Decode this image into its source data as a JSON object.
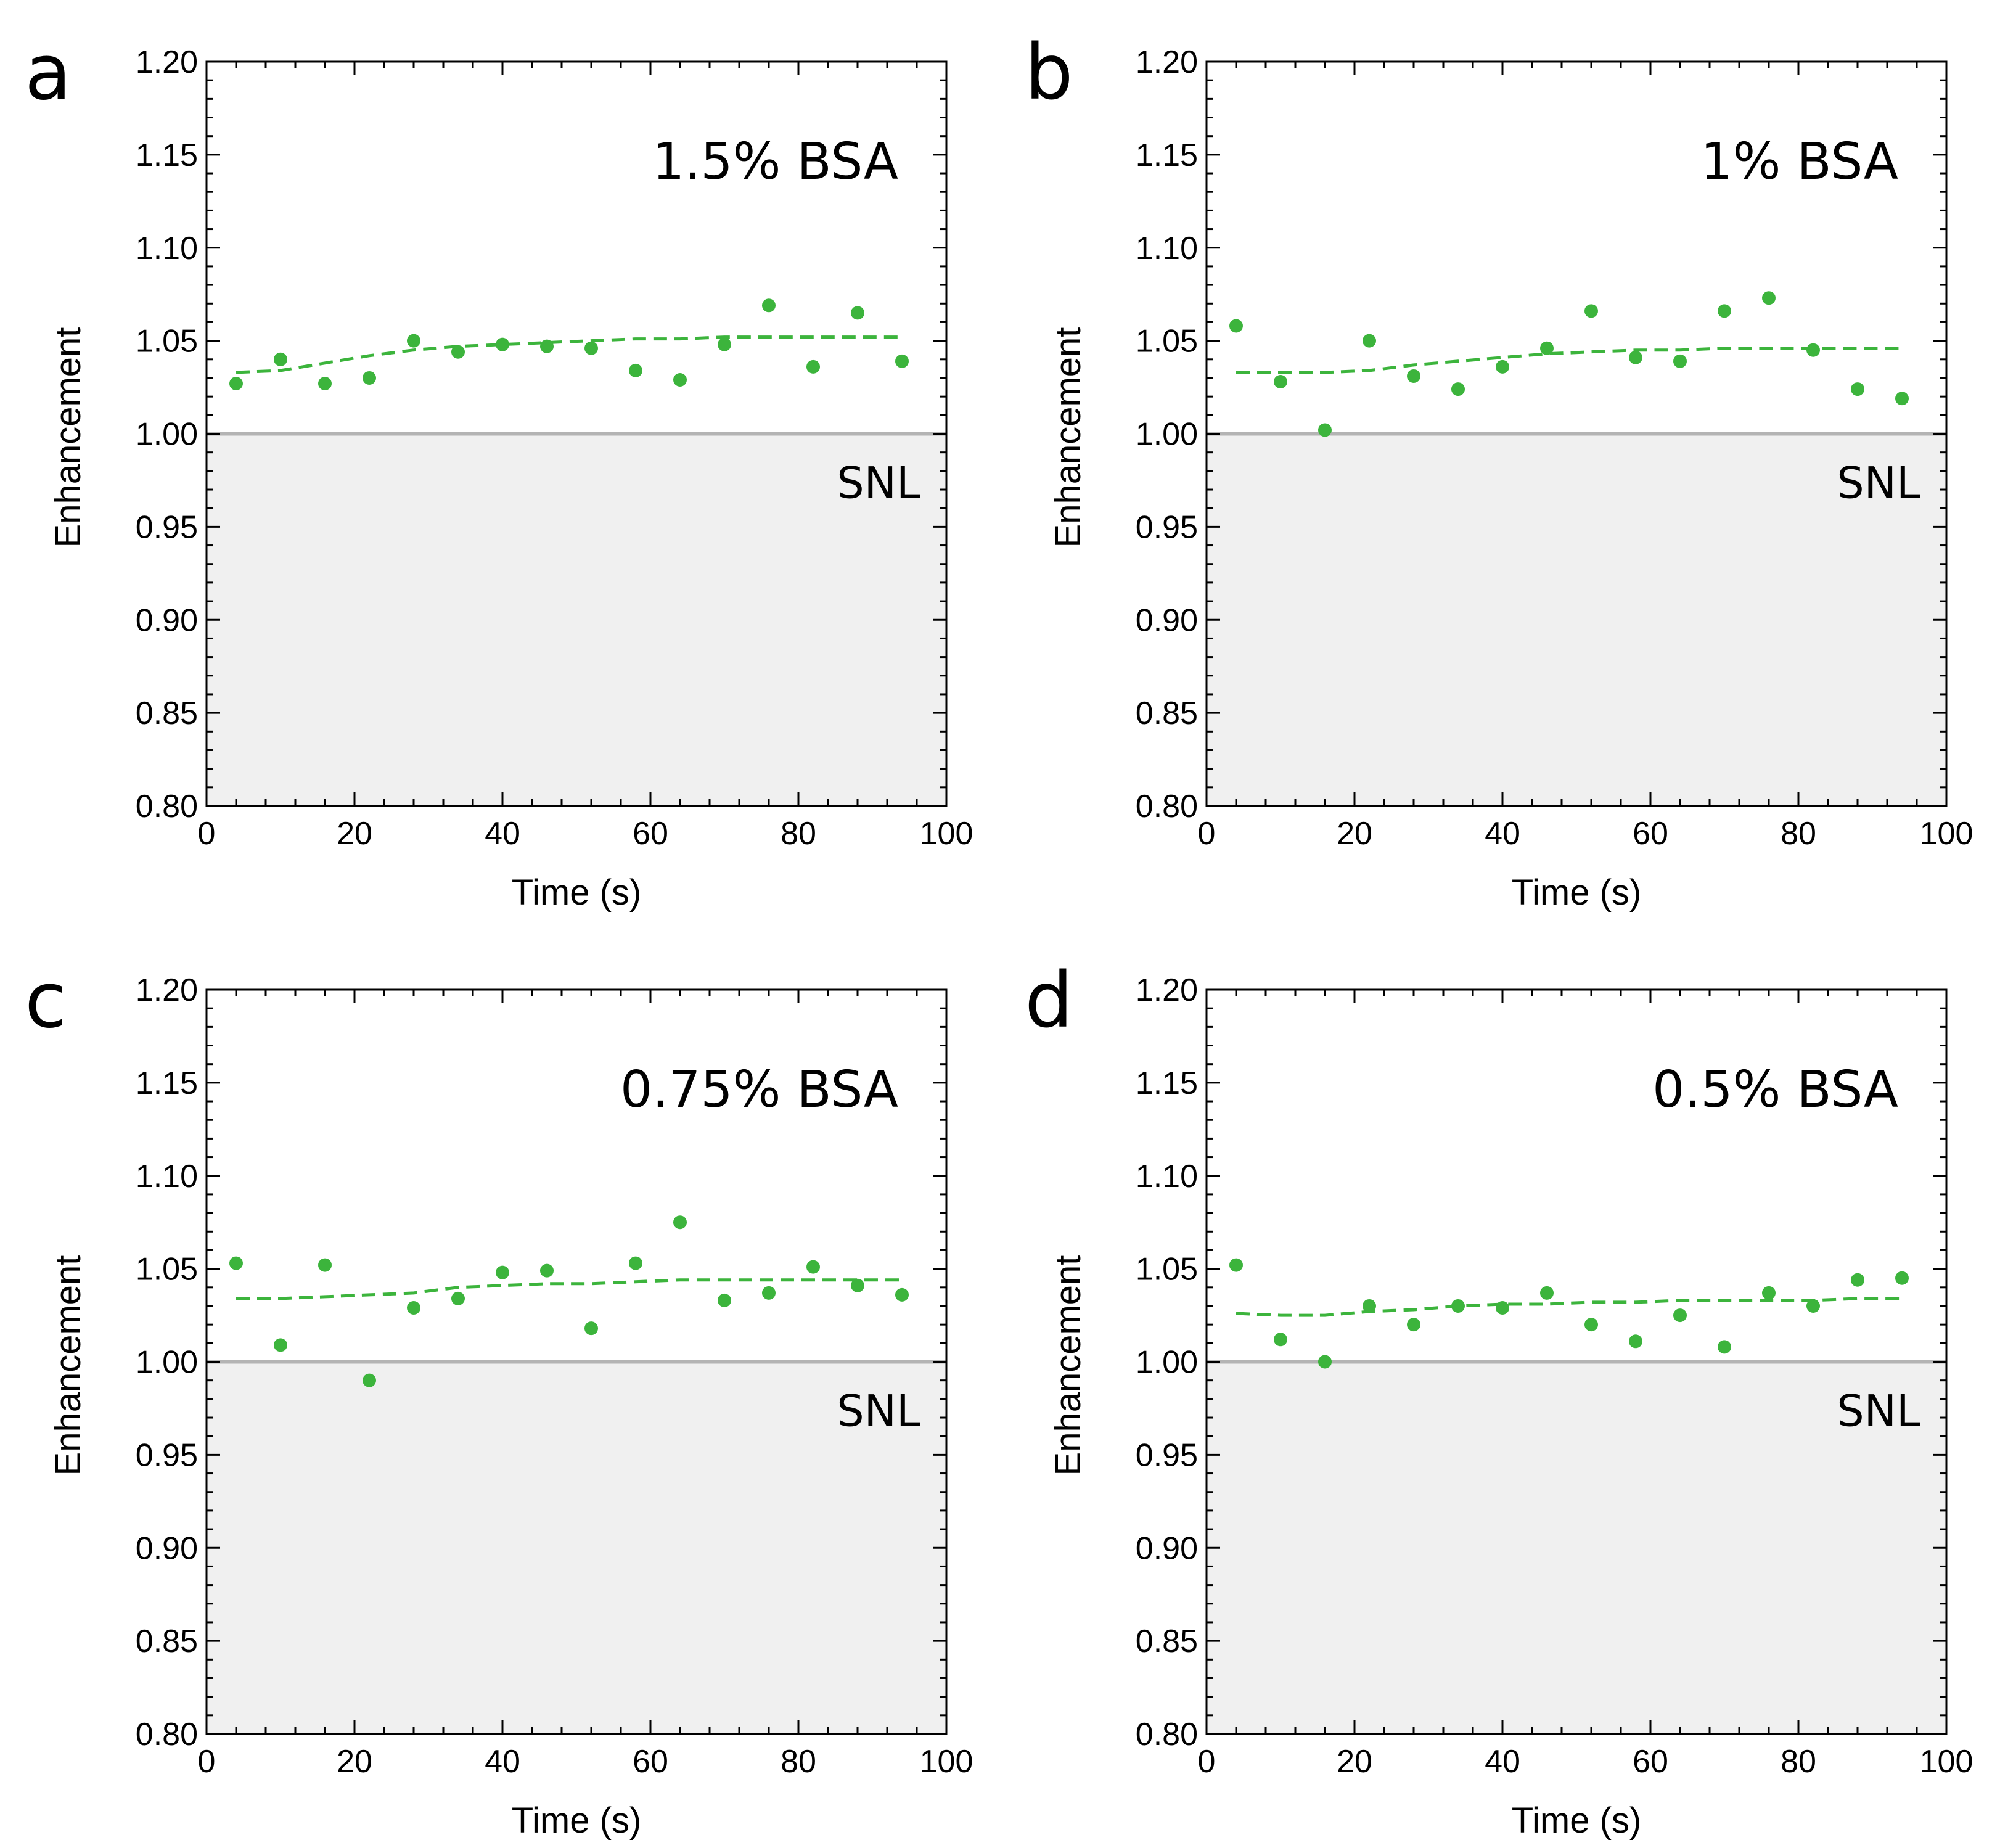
{
  "figure": {
    "colors": {
      "series": "#3cb43c",
      "snl_line": "#b4b4b4",
      "snl_fill": "#f0f0f0",
      "axes": "#000000"
    }
  },
  "chart_data": [
    {
      "type": "scatter",
      "panel_label": "a",
      "annotation": "1.5% BSA",
      "reference_label": "SNL",
      "reference_value": 1.0,
      "xlabel": "Time (s)",
      "ylabel": "Enhancement",
      "xlim": [
        0,
        100
      ],
      "ylim": [
        0.8,
        1.2
      ],
      "x_ticks": [
        "0",
        "20",
        "40",
        "60",
        "80",
        "100"
      ],
      "y_ticks": [
        "0.80",
        "0.85",
        "0.90",
        "0.95",
        "1.00",
        "1.05",
        "1.10",
        "1.15",
        "1.20"
      ],
      "x": [
        4,
        10,
        16,
        22,
        28,
        34,
        40,
        46,
        52,
        58,
        64,
        70,
        76,
        82,
        88,
        94
      ],
      "values": [
        1.027,
        1.04,
        1.027,
        1.03,
        1.05,
        1.044,
        1.048,
        1.047,
        1.046,
        1.034,
        1.029,
        1.048,
        1.069,
        1.036,
        1.065,
        1.039
      ],
      "fit": {
        "x": [
          4,
          10,
          16,
          22,
          28,
          34,
          40,
          46,
          52,
          58,
          64,
          70,
          76,
          82,
          88,
          94
        ],
        "y": [
          1.033,
          1.034,
          1.038,
          1.042,
          1.045,
          1.047,
          1.048,
          1.049,
          1.05,
          1.051,
          1.051,
          1.052,
          1.052,
          1.052,
          1.052,
          1.052
        ]
      }
    },
    {
      "type": "scatter",
      "panel_label": "b",
      "annotation": "1% BSA",
      "reference_label": "SNL",
      "reference_value": 1.0,
      "xlabel": "Time (s)",
      "ylabel": "Enhancement",
      "xlim": [
        0,
        100
      ],
      "ylim": [
        0.8,
        1.2
      ],
      "x_ticks": [
        "0",
        "20",
        "40",
        "60",
        "80",
        "100"
      ],
      "y_ticks": [
        "0.80",
        "0.85",
        "0.90",
        "0.95",
        "1.00",
        "1.05",
        "1.10",
        "1.15",
        "1.20"
      ],
      "x": [
        4,
        10,
        16,
        22,
        28,
        34,
        40,
        46,
        52,
        58,
        64,
        70,
        76,
        82,
        88,
        94
      ],
      "values": [
        1.058,
        1.028,
        1.002,
        1.05,
        1.031,
        1.024,
        1.036,
        1.046,
        1.066,
        1.041,
        1.039,
        1.066,
        1.073,
        1.045,
        1.024,
        1.019
      ],
      "fit": {
        "x": [
          4,
          10,
          16,
          22,
          28,
          34,
          40,
          46,
          52,
          58,
          64,
          70,
          76,
          82,
          88,
          94
        ],
        "y": [
          1.033,
          1.033,
          1.033,
          1.034,
          1.037,
          1.039,
          1.041,
          1.043,
          1.044,
          1.045,
          1.045,
          1.046,
          1.046,
          1.046,
          1.046,
          1.046
        ]
      }
    },
    {
      "type": "scatter",
      "panel_label": "c",
      "annotation": "0.75% BSA",
      "reference_label": "SNL",
      "reference_value": 1.0,
      "xlabel": "Time (s)",
      "ylabel": "Enhancement",
      "xlim": [
        0,
        100
      ],
      "ylim": [
        0.8,
        1.2
      ],
      "x_ticks": [
        "0",
        "20",
        "40",
        "60",
        "80",
        "100"
      ],
      "y_ticks": [
        "0.80",
        "0.85",
        "0.90",
        "0.95",
        "1.00",
        "1.05",
        "1.10",
        "1.15",
        "1.20"
      ],
      "x": [
        4,
        10,
        16,
        22,
        28,
        34,
        40,
        46,
        52,
        58,
        64,
        70,
        76,
        82,
        88,
        94
      ],
      "values": [
        1.053,
        1.009,
        1.052,
        0.99,
        1.029,
        1.034,
        1.048,
        1.049,
        1.018,
        1.053,
        1.075,
        1.033,
        1.037,
        1.051,
        1.041,
        1.036
      ],
      "fit": {
        "x": [
          4,
          10,
          16,
          22,
          28,
          34,
          40,
          46,
          52,
          58,
          64,
          70,
          76,
          82,
          88,
          94
        ],
        "y": [
          1.034,
          1.034,
          1.035,
          1.036,
          1.037,
          1.04,
          1.041,
          1.042,
          1.042,
          1.043,
          1.044,
          1.044,
          1.044,
          1.044,
          1.044,
          1.044
        ]
      }
    },
    {
      "type": "scatter",
      "panel_label": "d",
      "annotation": "0.5% BSA",
      "reference_label": "SNL",
      "reference_value": 1.0,
      "xlabel": "Time (s)",
      "ylabel": "Enhancement",
      "xlim": [
        0,
        100
      ],
      "ylim": [
        0.8,
        1.2
      ],
      "x_ticks": [
        "0",
        "20",
        "40",
        "60",
        "80",
        "100"
      ],
      "y_ticks": [
        "0.80",
        "0.85",
        "0.90",
        "0.95",
        "1.00",
        "1.05",
        "1.10",
        "1.15",
        "1.20"
      ],
      "x": [
        4,
        10,
        16,
        22,
        28,
        34,
        40,
        46,
        52,
        58,
        64,
        70,
        76,
        82,
        88,
        94
      ],
      "values": [
        1.052,
        1.012,
        1.0,
        1.03,
        1.02,
        1.03,
        1.029,
        1.037,
        1.02,
        1.011,
        1.025,
        1.008,
        1.037,
        1.03,
        1.044,
        1.045
      ],
      "fit": {
        "x": [
          4,
          10,
          16,
          22,
          28,
          34,
          40,
          46,
          52,
          58,
          64,
          70,
          76,
          82,
          88,
          94
        ],
        "y": [
          1.026,
          1.025,
          1.025,
          1.027,
          1.028,
          1.03,
          1.031,
          1.031,
          1.032,
          1.032,
          1.033,
          1.033,
          1.033,
          1.033,
          1.034,
          1.034
        ]
      }
    }
  ]
}
